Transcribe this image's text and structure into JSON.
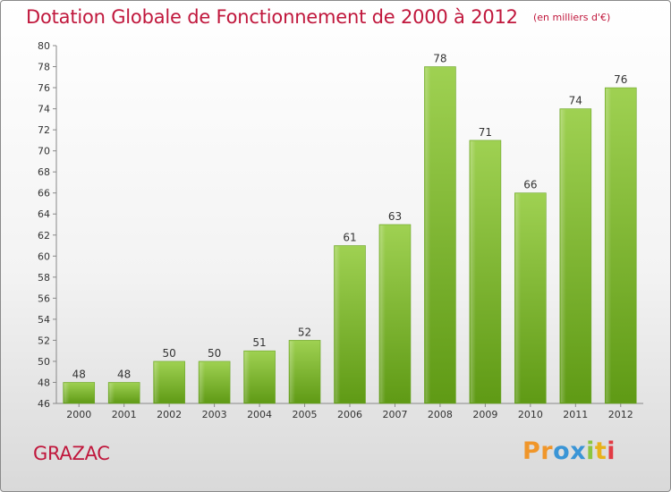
{
  "chart_data": {
    "type": "bar",
    "title": "Dotation Globale de Fonctionnement de 2000 à 2012",
    "subtitle": "(en milliers d'€)",
    "categories": [
      "2000",
      "2001",
      "2002",
      "2003",
      "2004",
      "2005",
      "2006",
      "2007",
      "2008",
      "2009",
      "2010",
      "2011",
      "2012"
    ],
    "values": [
      48,
      48,
      50,
      50,
      51,
      52,
      61,
      63,
      78,
      71,
      66,
      74,
      76
    ],
    "ylim": [
      46,
      80
    ],
    "yticks": [
      46,
      48,
      50,
      52,
      54,
      56,
      58,
      60,
      62,
      64,
      66,
      68,
      70,
      72,
      74,
      76,
      78,
      80
    ],
    "grid": false,
    "colors": {
      "bar": "#7fbf2e",
      "title": "#c0173c"
    }
  },
  "commune": "GRAZAC",
  "logo": {
    "text": "Proxiti",
    "letters": [
      {
        "ch": "P",
        "color": "#f0962a"
      },
      {
        "ch": "r",
        "color": "#f0962a"
      },
      {
        "ch": "o",
        "color": "#3a95d6"
      },
      {
        "ch": "x",
        "color": "#3a95d6"
      },
      {
        "ch": "i",
        "color": "#8cc63f"
      },
      {
        "ch": "t",
        "color": "#e8b21c"
      },
      {
        "ch": "i",
        "color": "#e23b44"
      }
    ]
  }
}
